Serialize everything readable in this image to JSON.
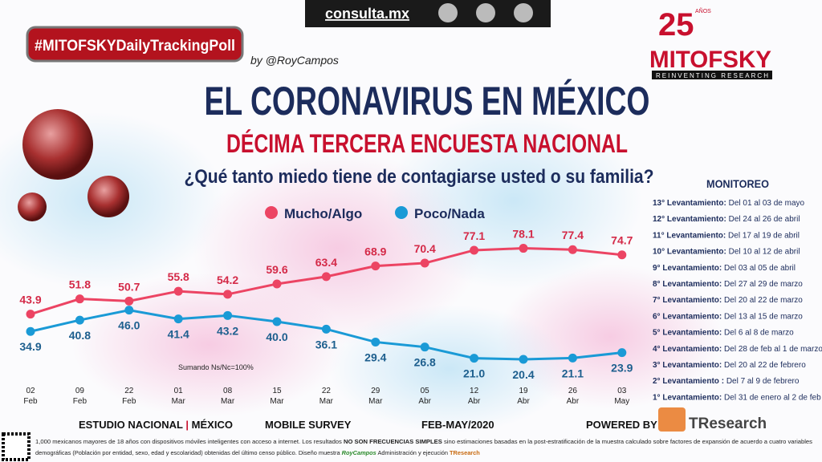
{
  "header": {
    "site": "consulta.mx",
    "hashtag": "#MITOFSKYDailyTrackingPoll",
    "byline": "by @RoyCampos",
    "logo": {
      "years": "25",
      "years_label": "AÑOS",
      "name": "MITOFSKY",
      "tagline": "REINVENTING RESEARCH"
    },
    "title": "EL CORONAVIRUS EN MÉXICO",
    "subtitle": "DÉCIMA TERCERA ENCUESTA NACIONAL"
  },
  "chart_data": {
    "type": "line",
    "title": "¿Qué tanto miedo tiene de contagiarse usted o su familia?",
    "categories": [
      [
        "02",
        "Feb"
      ],
      [
        "09",
        "Feb"
      ],
      [
        "22",
        "Feb"
      ],
      [
        "01",
        "Mar"
      ],
      [
        "08",
        "Mar"
      ],
      [
        "15",
        "Mar"
      ],
      [
        "22",
        "Mar"
      ],
      [
        "29",
        "Mar"
      ],
      [
        "05",
        "Abr"
      ],
      [
        "12",
        "Abr"
      ],
      [
        "19",
        "Abr"
      ],
      [
        "26",
        "Abr"
      ],
      [
        "03",
        "May"
      ]
    ],
    "series": [
      {
        "name": "Mucho/Algo",
        "color": "#ec4463",
        "values": [
          43.9,
          51.8,
          50.7,
          55.8,
          54.2,
          59.6,
          63.4,
          68.9,
          70.4,
          77.1,
          78.1,
          77.4,
          74.7
        ],
        "value_labels": [
          "43.9",
          "51.8",
          "50.7",
          "55.8",
          "54.2",
          "59.6",
          "63.4",
          "68.9",
          "70.4",
          "77.1",
          "78.1",
          "77.4",
          "74.7"
        ]
      },
      {
        "name": "Poco/Nada",
        "color": "#1a9ad6",
        "values": [
          34.9,
          40.8,
          46.0,
          41.4,
          43.2,
          40.0,
          36.1,
          29.4,
          26.8,
          21.0,
          20.4,
          21.1,
          23.9
        ],
        "value_labels": [
          "34.9",
          "40.8",
          "46.0",
          "41.4",
          "43.2",
          "40.0",
          "36.1",
          "29.4",
          "26.8",
          "21.0",
          "20.4",
          "21.1",
          "23.9"
        ]
      }
    ],
    "ylim": [
      0,
      100
    ],
    "annotation": "Sumando Ns/Nc=100%"
  },
  "monitoring": {
    "title": "MONITOREO",
    "rows": [
      [
        "13° Levantamiento:",
        "Del 01 al 03 de mayo"
      ],
      [
        "12° Levantamiento:",
        "Del 24 al 26 de abril"
      ],
      [
        "11° Levantamiento:",
        "Del 17 al 19 de abril"
      ],
      [
        "10° Levantamiento:",
        "Del 10 al 12 de abril"
      ],
      [
        "9° Levantamiento:",
        "Del 03 al 05 de abril"
      ],
      [
        "8° Levantamiento:",
        "Del 27 al 29 de marzo"
      ],
      [
        "7° Levantamiento:",
        "Del 20 al 22 de marzo"
      ],
      [
        "6° Levantamiento:",
        "Del 13 al 15 de marzo"
      ],
      [
        "5° Levantamiento:",
        "Del 6 al 8 de marzo"
      ],
      [
        "4° Levantamiento:",
        "Del 28 de feb al 1 de marzo"
      ],
      [
        "3° Levantamiento:",
        "Del 20 al 22 de febrero"
      ],
      [
        "2° Levantamiento :",
        "Del 7 al 9 de febrero"
      ],
      [
        "1° Levantamiento:",
        "Del 31 de enero al 2 de feb"
      ]
    ]
  },
  "footer": {
    "study": "ESTUDIO NACIONAL",
    "country": "MÉXICO",
    "mode": "MOBILE SURVEY",
    "period": "FEB-MAY/2020",
    "powered": "POWERED BY",
    "brand": "TResearch",
    "note": [
      "1,000 mexicanos mayores de 18 años con dispositivos móviles inteligentes con acceso a internet. Los resultados",
      "NO SON FRECUENCIAS SIMPLES",
      "sino estimaciones basadas en la post-estratificación de la muestra calculado sobre factores de expansión de acuerdo a cuatro variables",
      "demográficas (Población por entidad, sexo, edad y escolaridad) obtenidas del último censo público. Diseño muestra",
      "RoyCampos",
      "Administración y ejecución",
      "TResearch"
    ]
  }
}
